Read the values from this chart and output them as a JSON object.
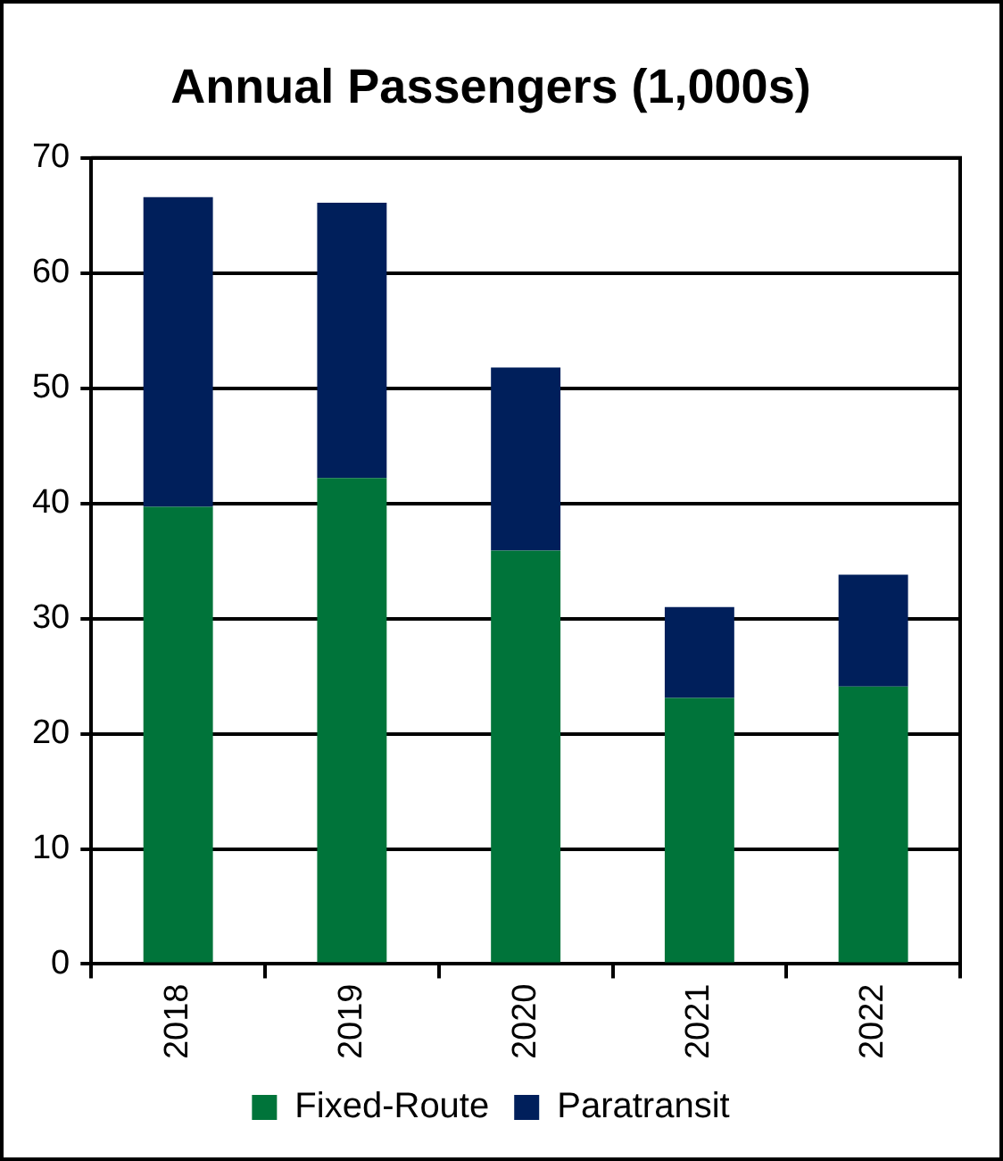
{
  "chart_data": {
    "type": "bar",
    "title": "Annual Passengers (1,000s)",
    "categories": [
      "2018",
      "2019",
      "2020",
      "2021",
      "2022"
    ],
    "stacked": true,
    "series": [
      {
        "name": "Fixed-Route",
        "color": "#00743a",
        "values": [
          39.7,
          42.2,
          35.9,
          23.1,
          24.1
        ]
      },
      {
        "name": "Paratransit",
        "color": "#001f5b",
        "values": [
          26.9,
          23.9,
          15.9,
          7.9,
          9.7
        ]
      }
    ],
    "ylim": [
      0,
      70
    ],
    "yticks": [
      0,
      10,
      20,
      30,
      40,
      50,
      60,
      70
    ],
    "grid": "y",
    "legend": "bottom"
  }
}
